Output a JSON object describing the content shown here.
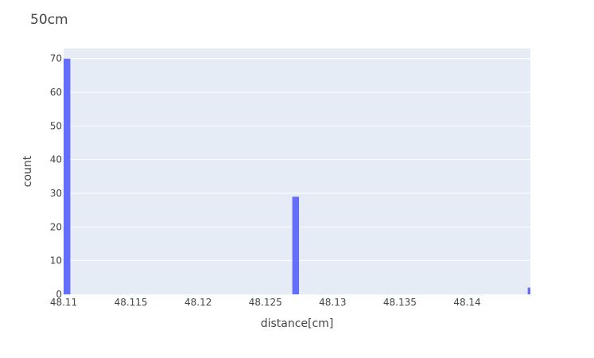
{
  "chart_data": {
    "type": "bar",
    "title": "50cm",
    "xlabel": "distance[cm]",
    "ylabel": "count",
    "x_ticks": [
      "48.11",
      "48.115",
      "48.12",
      "48.125",
      "48.13",
      "48.135",
      "48.14"
    ],
    "x_tick_values": [
      48.11,
      48.115,
      48.12,
      48.125,
      48.13,
      48.135,
      48.14
    ],
    "y_ticks": [
      0,
      10,
      20,
      30,
      40,
      50,
      60,
      70
    ],
    "xlim": [
      48.11,
      48.1447
    ],
    "ylim": [
      0,
      73
    ],
    "grid": true,
    "bar_color": "#636efa",
    "plot_background": "#e5ecf6",
    "bin_width": 0.0005,
    "series": [
      {
        "x": [
          48.11,
          48.127,
          48.1445
        ],
        "values": [
          70,
          29,
          2
        ]
      }
    ]
  }
}
